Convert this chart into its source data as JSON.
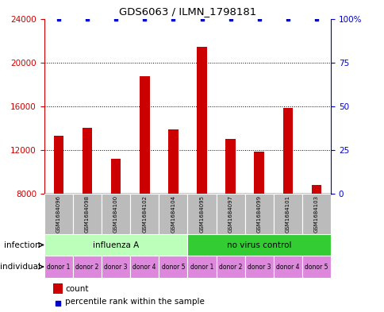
{
  "title": "GDS6063 / ILMN_1798181",
  "samples": [
    "GSM1684096",
    "GSM1684098",
    "GSM1684100",
    "GSM1684102",
    "GSM1684104",
    "GSM1684095",
    "GSM1684097",
    "GSM1684099",
    "GSM1684101",
    "GSM1684103"
  ],
  "counts": [
    13300,
    14000,
    11200,
    18700,
    13900,
    21400,
    13000,
    11800,
    15800,
    8800
  ],
  "ylim_left": [
    8000,
    24000
  ],
  "ylim_right": [
    0,
    100
  ],
  "yticks_left": [
    8000,
    12000,
    16000,
    20000,
    24000
  ],
  "yticks_right": [
    0,
    25,
    50,
    75,
    100
  ],
  "ytick_labels_right": [
    "0",
    "25",
    "50",
    "75",
    "100%"
  ],
  "bar_color": "#cc0000",
  "dot_color": "#0000cc",
  "infection_groups": [
    {
      "label": "influenza A",
      "start": 0,
      "end": 5,
      "color": "#bbffbb"
    },
    {
      "label": "no virus control",
      "start": 5,
      "end": 10,
      "color": "#33cc33"
    }
  ],
  "individual_labels": [
    "donor 1",
    "donor 2",
    "donor 3",
    "donor 4",
    "donor 5",
    "donor 1",
    "donor 2",
    "donor 3",
    "donor 4",
    "donor 5"
  ],
  "individual_color": "#dd88dd",
  "sample_bg_color": "#bbbbbb",
  "axis_color_left": "#cc0000",
  "axis_color_right": "#0000cc",
  "infection_label": "infection",
  "individual_label": "individual",
  "count_label": "count",
  "percentile_label": "percentile rank within the sample"
}
